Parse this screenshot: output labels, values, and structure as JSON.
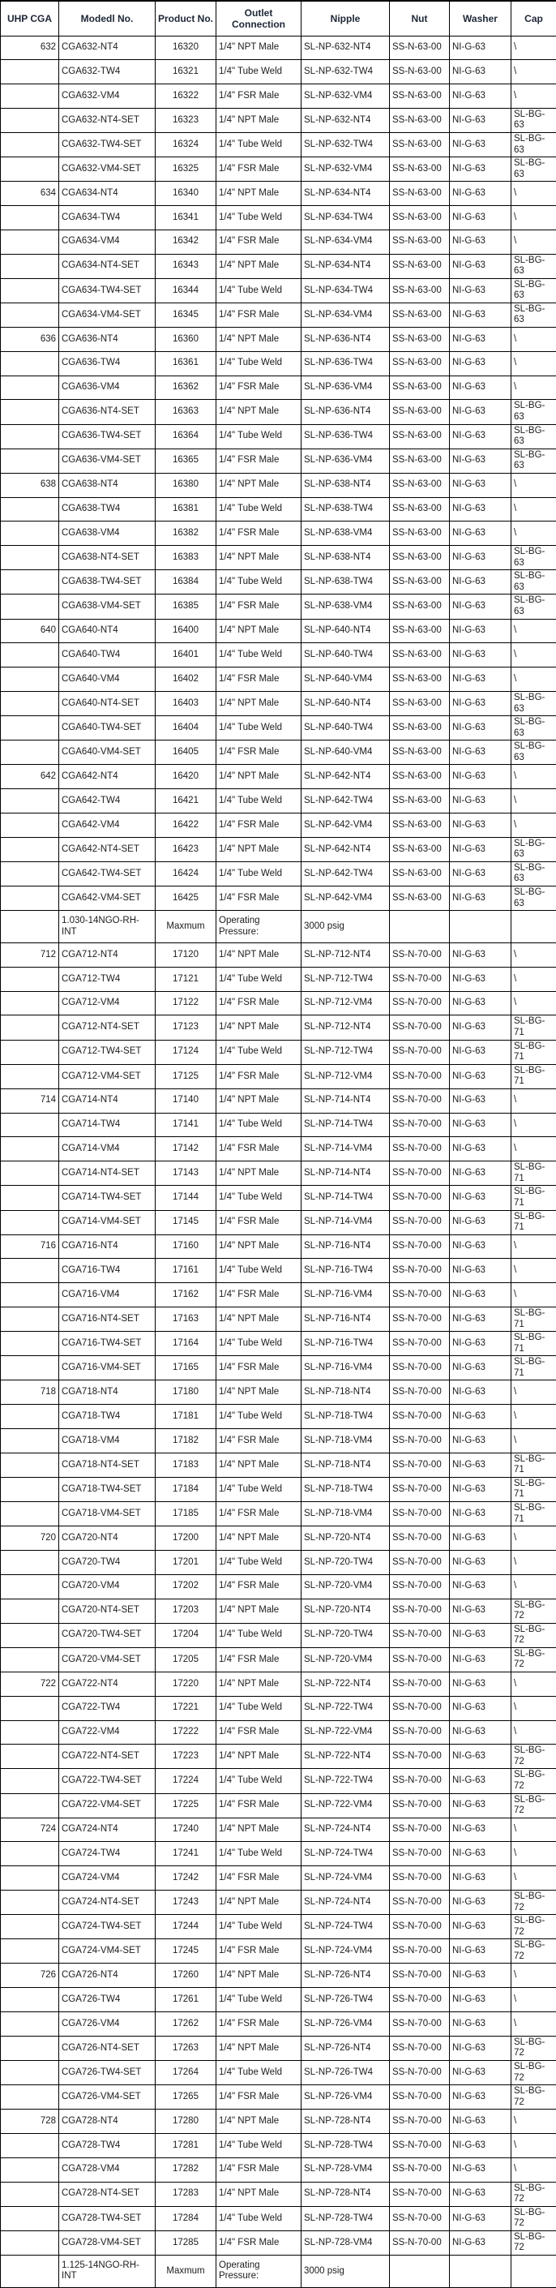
{
  "table": {
    "columns": [
      "UHP CGA",
      "Modedl No.",
      "Product\nNo.",
      "Outlet\nConnection",
      "Nipple",
      "Nut",
      "Washer",
      "Cap"
    ],
    "column_keys": [
      "uhp-cga",
      "model-no",
      "product-no",
      "outlet-connection",
      "nipple",
      "nut",
      "washer",
      "cap"
    ],
    "pressure_row_indexes": [
      36,
      91
    ],
    "rows": [
      [
        "632",
        "CGA632-NT4",
        "16320",
        "1/4\" NPT Male",
        "SL-NP-632-NT4",
        "SS-N-63-00",
        "NI-G-63",
        "\\"
      ],
      [
        "",
        "CGA632-TW4",
        "16321",
        "1/4\" Tube Weld",
        "SL-NP-632-TW4",
        "SS-N-63-00",
        "NI-G-63",
        "\\"
      ],
      [
        "",
        "CGA632-VM4",
        "16322",
        "1/4\" FSR Male",
        "SL-NP-632-VM4",
        "SS-N-63-00",
        "NI-G-63",
        "\\"
      ],
      [
        "",
        "CGA632-NT4-SET",
        "16323",
        "1/4\" NPT Male",
        "SL-NP-632-NT4",
        "SS-N-63-00",
        "NI-G-63",
        "SL-BG-63"
      ],
      [
        "",
        "CGA632-TW4-SET",
        "16324",
        "1/4\" Tube Weld",
        "SL-NP-632-TW4",
        "SS-N-63-00",
        "NI-G-63",
        "SL-BG-63"
      ],
      [
        "",
        "CGA632-VM4-SET",
        "16325",
        "1/4\" FSR Male",
        "SL-NP-632-VM4",
        "SS-N-63-00",
        "NI-G-63",
        "SL-BG-63"
      ],
      [
        "634",
        "CGA634-NT4",
        "16340",
        "1/4\" NPT Male",
        "SL-NP-634-NT4",
        "SS-N-63-00",
        "NI-G-63",
        "\\"
      ],
      [
        "",
        "CGA634-TW4",
        "16341",
        "1/4\" Tube Weld",
        "SL-NP-634-TW4",
        "SS-N-63-00",
        "NI-G-63",
        "\\"
      ],
      [
        "",
        "CGA634-VM4",
        "16342",
        "1/4\" FSR Male",
        "SL-NP-634-VM4",
        "SS-N-63-00",
        "NI-G-63",
        "\\"
      ],
      [
        "",
        "CGA634-NT4-SET",
        "16343",
        "1/4\" NPT Male",
        "SL-NP-634-NT4",
        "SS-N-63-00",
        "NI-G-63",
        "SL-BG-63"
      ],
      [
        "",
        "CGA634-TW4-SET",
        "16344",
        "1/4\" Tube Weld",
        "SL-NP-634-TW4",
        "SS-N-63-00",
        "NI-G-63",
        "SL-BG-63"
      ],
      [
        "",
        "CGA634-VM4-SET",
        "16345",
        "1/4\" FSR Male",
        "SL-NP-634-VM4",
        "SS-N-63-00",
        "NI-G-63",
        "SL-BG-63"
      ],
      [
        "636",
        "CGA636-NT4",
        "16360",
        "1/4\" NPT Male",
        "SL-NP-636-NT4",
        "SS-N-63-00",
        "NI-G-63",
        "\\"
      ],
      [
        "",
        "CGA636-TW4",
        "16361",
        "1/4\" Tube Weld",
        "SL-NP-636-TW4",
        "SS-N-63-00",
        "NI-G-63",
        "\\"
      ],
      [
        "",
        "CGA636-VM4",
        "16362",
        "1/4\" FSR Male",
        "SL-NP-636-VM4",
        "SS-N-63-00",
        "NI-G-63",
        "\\"
      ],
      [
        "",
        "CGA636-NT4-SET",
        "16363",
        "1/4\" NPT Male",
        "SL-NP-636-NT4",
        "SS-N-63-00",
        "NI-G-63",
        "SL-BG-63"
      ],
      [
        "",
        "CGA636-TW4-SET",
        "16364",
        "1/4\" Tube Weld",
        "SL-NP-636-TW4",
        "SS-N-63-00",
        "NI-G-63",
        "SL-BG-63"
      ],
      [
        "",
        "CGA636-VM4-SET",
        "16365",
        "1/4\" FSR Male",
        "SL-NP-636-VM4",
        "SS-N-63-00",
        "NI-G-63",
        "SL-BG-63"
      ],
      [
        "638",
        "CGA638-NT4",
        "16380",
        "1/4\" NPT Male",
        "SL-NP-638-NT4",
        "SS-N-63-00",
        "NI-G-63",
        "\\"
      ],
      [
        "",
        "CGA638-TW4",
        "16381",
        "1/4\" Tube Weld",
        "SL-NP-638-TW4",
        "SS-N-63-00",
        "NI-G-63",
        "\\"
      ],
      [
        "",
        "CGA638-VM4",
        "16382",
        "1/4\" FSR Male",
        "SL-NP-638-VM4",
        "SS-N-63-00",
        "NI-G-63",
        "\\"
      ],
      [
        "",
        "CGA638-NT4-SET",
        "16383",
        "1/4\" NPT Male",
        "SL-NP-638-NT4",
        "SS-N-63-00",
        "NI-G-63",
        "SL-BG-63"
      ],
      [
        "",
        "CGA638-TW4-SET",
        "16384",
        "1/4\" Tube Weld",
        "SL-NP-638-TW4",
        "SS-N-63-00",
        "NI-G-63",
        "SL-BG-63"
      ],
      [
        "",
        "CGA638-VM4-SET",
        "16385",
        "1/4\" FSR Male",
        "SL-NP-638-VM4",
        "SS-N-63-00",
        "NI-G-63",
        "SL-BG-63"
      ],
      [
        "640",
        "CGA640-NT4",
        "16400",
        "1/4\" NPT Male",
        "SL-NP-640-NT4",
        "SS-N-63-00",
        "NI-G-63",
        "\\"
      ],
      [
        "",
        "CGA640-TW4",
        "16401",
        "1/4\" Tube Weld",
        "SL-NP-640-TW4",
        "SS-N-63-00",
        "NI-G-63",
        "\\"
      ],
      [
        "",
        "CGA640-VM4",
        "16402",
        "1/4\" FSR Male",
        "SL-NP-640-VM4",
        "SS-N-63-00",
        "NI-G-63",
        "\\"
      ],
      [
        "",
        "CGA640-NT4-SET",
        "16403",
        "1/4\" NPT Male",
        "SL-NP-640-NT4",
        "SS-N-63-00",
        "NI-G-63",
        "SL-BG-63"
      ],
      [
        "",
        "CGA640-TW4-SET",
        "16404",
        "1/4\" Tube Weld",
        "SL-NP-640-TW4",
        "SS-N-63-00",
        "NI-G-63",
        "SL-BG-63"
      ],
      [
        "",
        "CGA640-VM4-SET",
        "16405",
        "1/4\" FSR Male",
        "SL-NP-640-VM4",
        "SS-N-63-00",
        "NI-G-63",
        "SL-BG-63"
      ],
      [
        "642",
        "CGA642-NT4",
        "16420",
        "1/4\" NPT Male",
        "SL-NP-642-NT4",
        "SS-N-63-00",
        "NI-G-63",
        "\\"
      ],
      [
        "",
        "CGA642-TW4",
        "16421",
        "1/4\" Tube Weld",
        "SL-NP-642-TW4",
        "SS-N-63-00",
        "NI-G-63",
        "\\"
      ],
      [
        "",
        "CGA642-VM4",
        "16422",
        "1/4\" FSR Male",
        "SL-NP-642-VM4",
        "SS-N-63-00",
        "NI-G-63",
        "\\"
      ],
      [
        "",
        "CGA642-NT4-SET",
        "16423",
        "1/4\" NPT Male",
        "SL-NP-642-NT4",
        "SS-N-63-00",
        "NI-G-63",
        "SL-BG-63"
      ],
      [
        "",
        "CGA642-TW4-SET",
        "16424",
        "1/4\" Tube Weld",
        "SL-NP-642-TW4",
        "SS-N-63-00",
        "NI-G-63",
        "SL-BG-63"
      ],
      [
        "",
        "CGA642-VM4-SET",
        "16425",
        "1/4\" FSR Male",
        "SL-NP-642-VM4",
        "SS-N-63-00",
        "NI-G-63",
        "SL-BG-63"
      ],
      [
        "",
        "1.030-14NGO-RH-INT",
        "Maxmum",
        "Operating Pressure:",
        "3000 psig",
        "",
        "",
        ""
      ],
      [
        "712",
        "CGA712-NT4",
        "17120",
        "1/4\" NPT Male",
        "SL-NP-712-NT4",
        "SS-N-70-00",
        "NI-G-63",
        "\\"
      ],
      [
        "",
        "CGA712-TW4",
        "17121",
        "1/4\" Tube Weld",
        "SL-NP-712-TW4",
        "SS-N-70-00",
        "NI-G-63",
        "\\"
      ],
      [
        "",
        "CGA712-VM4",
        "17122",
        "1/4\" FSR Male",
        "SL-NP-712-VM4",
        "SS-N-70-00",
        "NI-G-63",
        "\\"
      ],
      [
        "",
        "CGA712-NT4-SET",
        "17123",
        "1/4\" NPT Male",
        "SL-NP-712-NT4",
        "SS-N-70-00",
        "NI-G-63",
        "SL-BG-71"
      ],
      [
        "",
        "CGA712-TW4-SET",
        "17124",
        "1/4\" Tube Weld",
        "SL-NP-712-TW4",
        "SS-N-70-00",
        "NI-G-63",
        "SL-BG-71"
      ],
      [
        "",
        "CGA712-VM4-SET",
        "17125",
        "1/4\" FSR Male",
        "SL-NP-712-VM4",
        "SS-N-70-00",
        "NI-G-63",
        "SL-BG-71"
      ],
      [
        "714",
        "CGA714-NT4",
        "17140",
        "1/4\" NPT Male",
        "SL-NP-714-NT4",
        "SS-N-70-00",
        "NI-G-63",
        "\\"
      ],
      [
        "",
        "CGA714-TW4",
        "17141",
        "1/4\" Tube Weld",
        "SL-NP-714-TW4",
        "SS-N-70-00",
        "NI-G-63",
        "\\"
      ],
      [
        "",
        "CGA714-VM4",
        "17142",
        "1/4\" FSR Male",
        "SL-NP-714-VM4",
        "SS-N-70-00",
        "NI-G-63",
        "\\"
      ],
      [
        "",
        "CGA714-NT4-SET",
        "17143",
        "1/4\" NPT Male",
        "SL-NP-714-NT4",
        "SS-N-70-00",
        "NI-G-63",
        "SL-BG-71"
      ],
      [
        "",
        "CGA714-TW4-SET",
        "17144",
        "1/4\" Tube Weld",
        "SL-NP-714-TW4",
        "SS-N-70-00",
        "NI-G-63",
        "SL-BG-71"
      ],
      [
        "",
        "CGA714-VM4-SET",
        "17145",
        "1/4\" FSR Male",
        "SL-NP-714-VM4",
        "SS-N-70-00",
        "NI-G-63",
        "SL-BG-71"
      ],
      [
        "716",
        "CGA716-NT4",
        "17160",
        "1/4\" NPT Male",
        "SL-NP-716-NT4",
        "SS-N-70-00",
        "NI-G-63",
        "\\"
      ],
      [
        "",
        "CGA716-TW4",
        "17161",
        "1/4\" Tube Weld",
        "SL-NP-716-TW4",
        "SS-N-70-00",
        "NI-G-63",
        "\\"
      ],
      [
        "",
        "CGA716-VM4",
        "17162",
        "1/4\" FSR Male",
        "SL-NP-716-VM4",
        "SS-N-70-00",
        "NI-G-63",
        "\\"
      ],
      [
        "",
        "CGA716-NT4-SET",
        "17163",
        "1/4\" NPT Male",
        "SL-NP-716-NT4",
        "SS-N-70-00",
        "NI-G-63",
        "SL-BG-71"
      ],
      [
        "",
        "CGA716-TW4-SET",
        "17164",
        "1/4\" Tube Weld",
        "SL-NP-716-TW4",
        "SS-N-70-00",
        "NI-G-63",
        "SL-BG-71"
      ],
      [
        "",
        "CGA716-VM4-SET",
        "17165",
        "1/4\" FSR Male",
        "SL-NP-716-VM4",
        "SS-N-70-00",
        "NI-G-63",
        "SL-BG-71"
      ],
      [
        "718",
        "CGA718-NT4",
        "17180",
        "1/4\" NPT Male",
        "SL-NP-718-NT4",
        "SS-N-70-00",
        "NI-G-63",
        "\\"
      ],
      [
        "",
        "CGA718-TW4",
        "17181",
        "1/4\" Tube Weld",
        "SL-NP-718-TW4",
        "SS-N-70-00",
        "NI-G-63",
        "\\"
      ],
      [
        "",
        "CGA718-VM4",
        "17182",
        "1/4\" FSR Male",
        "SL-NP-718-VM4",
        "SS-N-70-00",
        "NI-G-63",
        "\\"
      ],
      [
        "",
        "CGA718-NT4-SET",
        "17183",
        "1/4\" NPT Male",
        "SL-NP-718-NT4",
        "SS-N-70-00",
        "NI-G-63",
        "SL-BG-71"
      ],
      [
        "",
        "CGA718-TW4-SET",
        "17184",
        "1/4\" Tube Weld",
        "SL-NP-718-TW4",
        "SS-N-70-00",
        "NI-G-63",
        "SL-BG-71"
      ],
      [
        "",
        "CGA718-VM4-SET",
        "17185",
        "1/4\" FSR Male",
        "SL-NP-718-VM4",
        "SS-N-70-00",
        "NI-G-63",
        "SL-BG-71"
      ],
      [
        "720",
        "CGA720-NT4",
        "17200",
        "1/4\" NPT Male",
        "SL-NP-720-NT4",
        "SS-N-70-00",
        "NI-G-63",
        "\\"
      ],
      [
        "",
        "CGA720-TW4",
        "17201",
        "1/4\" Tube Weld",
        "SL-NP-720-TW4",
        "SS-N-70-00",
        "NI-G-63",
        "\\"
      ],
      [
        "",
        "CGA720-VM4",
        "17202",
        "1/4\" FSR Male",
        "SL-NP-720-VM4",
        "SS-N-70-00",
        "NI-G-63",
        "\\"
      ],
      [
        "",
        "CGA720-NT4-SET",
        "17203",
        "1/4\" NPT Male",
        "SL-NP-720-NT4",
        "SS-N-70-00",
        "NI-G-63",
        "SL-BG-72"
      ],
      [
        "",
        "CGA720-TW4-SET",
        "17204",
        "1/4\" Tube Weld",
        "SL-NP-720-TW4",
        "SS-N-70-00",
        "NI-G-63",
        "SL-BG-72"
      ],
      [
        "",
        "CGA720-VM4-SET",
        "17205",
        "1/4\" FSR Male",
        "SL-NP-720-VM4",
        "SS-N-70-00",
        "NI-G-63",
        "SL-BG-72"
      ],
      [
        "722",
        "CGA722-NT4",
        "17220",
        "1/4\" NPT Male",
        "SL-NP-722-NT4",
        "SS-N-70-00",
        "NI-G-63",
        "\\"
      ],
      [
        "",
        "CGA722-TW4",
        "17221",
        "1/4\" Tube Weld",
        "SL-NP-722-TW4",
        "SS-N-70-00",
        "NI-G-63",
        "\\"
      ],
      [
        "",
        "CGA722-VM4",
        "17222",
        "1/4\" FSR Male",
        "SL-NP-722-VM4",
        "SS-N-70-00",
        "NI-G-63",
        "\\"
      ],
      [
        "",
        "CGA722-NT4-SET",
        "17223",
        "1/4\" NPT Male",
        "SL-NP-722-NT4",
        "SS-N-70-00",
        "NI-G-63",
        "SL-BG-72"
      ],
      [
        "",
        "CGA722-TW4-SET",
        "17224",
        "1/4\" Tube Weld",
        "SL-NP-722-TW4",
        "SS-N-70-00",
        "NI-G-63",
        "SL-BG-72"
      ],
      [
        "",
        "CGA722-VM4-SET",
        "17225",
        "1/4\" FSR Male",
        "SL-NP-722-VM4",
        "SS-N-70-00",
        "NI-G-63",
        "SL-BG-72"
      ],
      [
        "724",
        "CGA724-NT4",
        "17240",
        "1/4\" NPT Male",
        "SL-NP-724-NT4",
        "SS-N-70-00",
        "NI-G-63",
        "\\"
      ],
      [
        "",
        "CGA724-TW4",
        "17241",
        "1/4\" Tube Weld",
        "SL-NP-724-TW4",
        "SS-N-70-00",
        "NI-G-63",
        "\\"
      ],
      [
        "",
        "CGA724-VM4",
        "17242",
        "1/4\" FSR Male",
        "SL-NP-724-VM4",
        "SS-N-70-00",
        "NI-G-63",
        "\\"
      ],
      [
        "",
        "CGA724-NT4-SET",
        "17243",
        "1/4\" NPT Male",
        "SL-NP-724-NT4",
        "SS-N-70-00",
        "NI-G-63",
        "SL-BG-72"
      ],
      [
        "",
        "CGA724-TW4-SET",
        "17244",
        "1/4\" Tube Weld",
        "SL-NP-724-TW4",
        "SS-N-70-00",
        "NI-G-63",
        "SL-BG-72"
      ],
      [
        "",
        "CGA724-VM4-SET",
        "17245",
        "1/4\" FSR Male",
        "SL-NP-724-VM4",
        "SS-N-70-00",
        "NI-G-63",
        "SL-BG-72"
      ],
      [
        "726",
        "CGA726-NT4",
        "17260",
        "1/4\" NPT Male",
        "SL-NP-726-NT4",
        "SS-N-70-00",
        "NI-G-63",
        "\\"
      ],
      [
        "",
        "CGA726-TW4",
        "17261",
        "1/4\" Tube Weld",
        "SL-NP-726-TW4",
        "SS-N-70-00",
        "NI-G-63",
        "\\"
      ],
      [
        "",
        "CGA726-VM4",
        "17262",
        "1/4\" FSR Male",
        "SL-NP-726-VM4",
        "SS-N-70-00",
        "NI-G-63",
        "\\"
      ],
      [
        "",
        "CGA726-NT4-SET",
        "17263",
        "1/4\" NPT Male",
        "SL-NP-726-NT4",
        "SS-N-70-00",
        "NI-G-63",
        "SL-BG-72"
      ],
      [
        "",
        "CGA726-TW4-SET",
        "17264",
        "1/4\" Tube Weld",
        "SL-NP-726-TW4",
        "SS-N-70-00",
        "NI-G-63",
        "SL-BG-72"
      ],
      [
        "",
        "CGA726-VM4-SET",
        "17265",
        "1/4\" FSR Male",
        "SL-NP-726-VM4",
        "SS-N-70-00",
        "NI-G-63",
        "SL-BG-72"
      ],
      [
        "728",
        "CGA728-NT4",
        "17280",
        "1/4\" NPT Male",
        "SL-NP-728-NT4",
        "SS-N-70-00",
        "NI-G-63",
        "\\"
      ],
      [
        "",
        "CGA728-TW4",
        "17281",
        "1/4\" Tube Weld",
        "SL-NP-728-TW4",
        "SS-N-70-00",
        "NI-G-63",
        "\\"
      ],
      [
        "",
        "CGA728-VM4",
        "17282",
        "1/4\" FSR Male",
        "SL-NP-728-VM4",
        "SS-N-70-00",
        "NI-G-63",
        "\\"
      ],
      [
        "",
        "CGA728-NT4-SET",
        "17283",
        "1/4\" NPT Male",
        "SL-NP-728-NT4",
        "SS-N-70-00",
        "NI-G-63",
        "SL-BG-72"
      ],
      [
        "",
        "CGA728-TW4-SET",
        "17284",
        "1/4\" Tube Weld",
        "SL-NP-728-TW4",
        "SS-N-70-00",
        "NI-G-63",
        "SL-BG-72"
      ],
      [
        "",
        "CGA728-VM4-SET",
        "17285",
        "1/4\" FSR Male",
        "SL-NP-728-VM4",
        "SS-N-70-00",
        "NI-G-63",
        "SL-BG-72"
      ],
      [
        "",
        "1.125-14NGO-RH-INT",
        "Maxmum",
        "Operating Pressure:",
        "3000 psig",
        "",
        "",
        ""
      ]
    ]
  },
  "colors": {
    "background": "#ffffff",
    "border": "#000000",
    "header_text": "#1e2636",
    "body_text": "#1c1c1c"
  }
}
